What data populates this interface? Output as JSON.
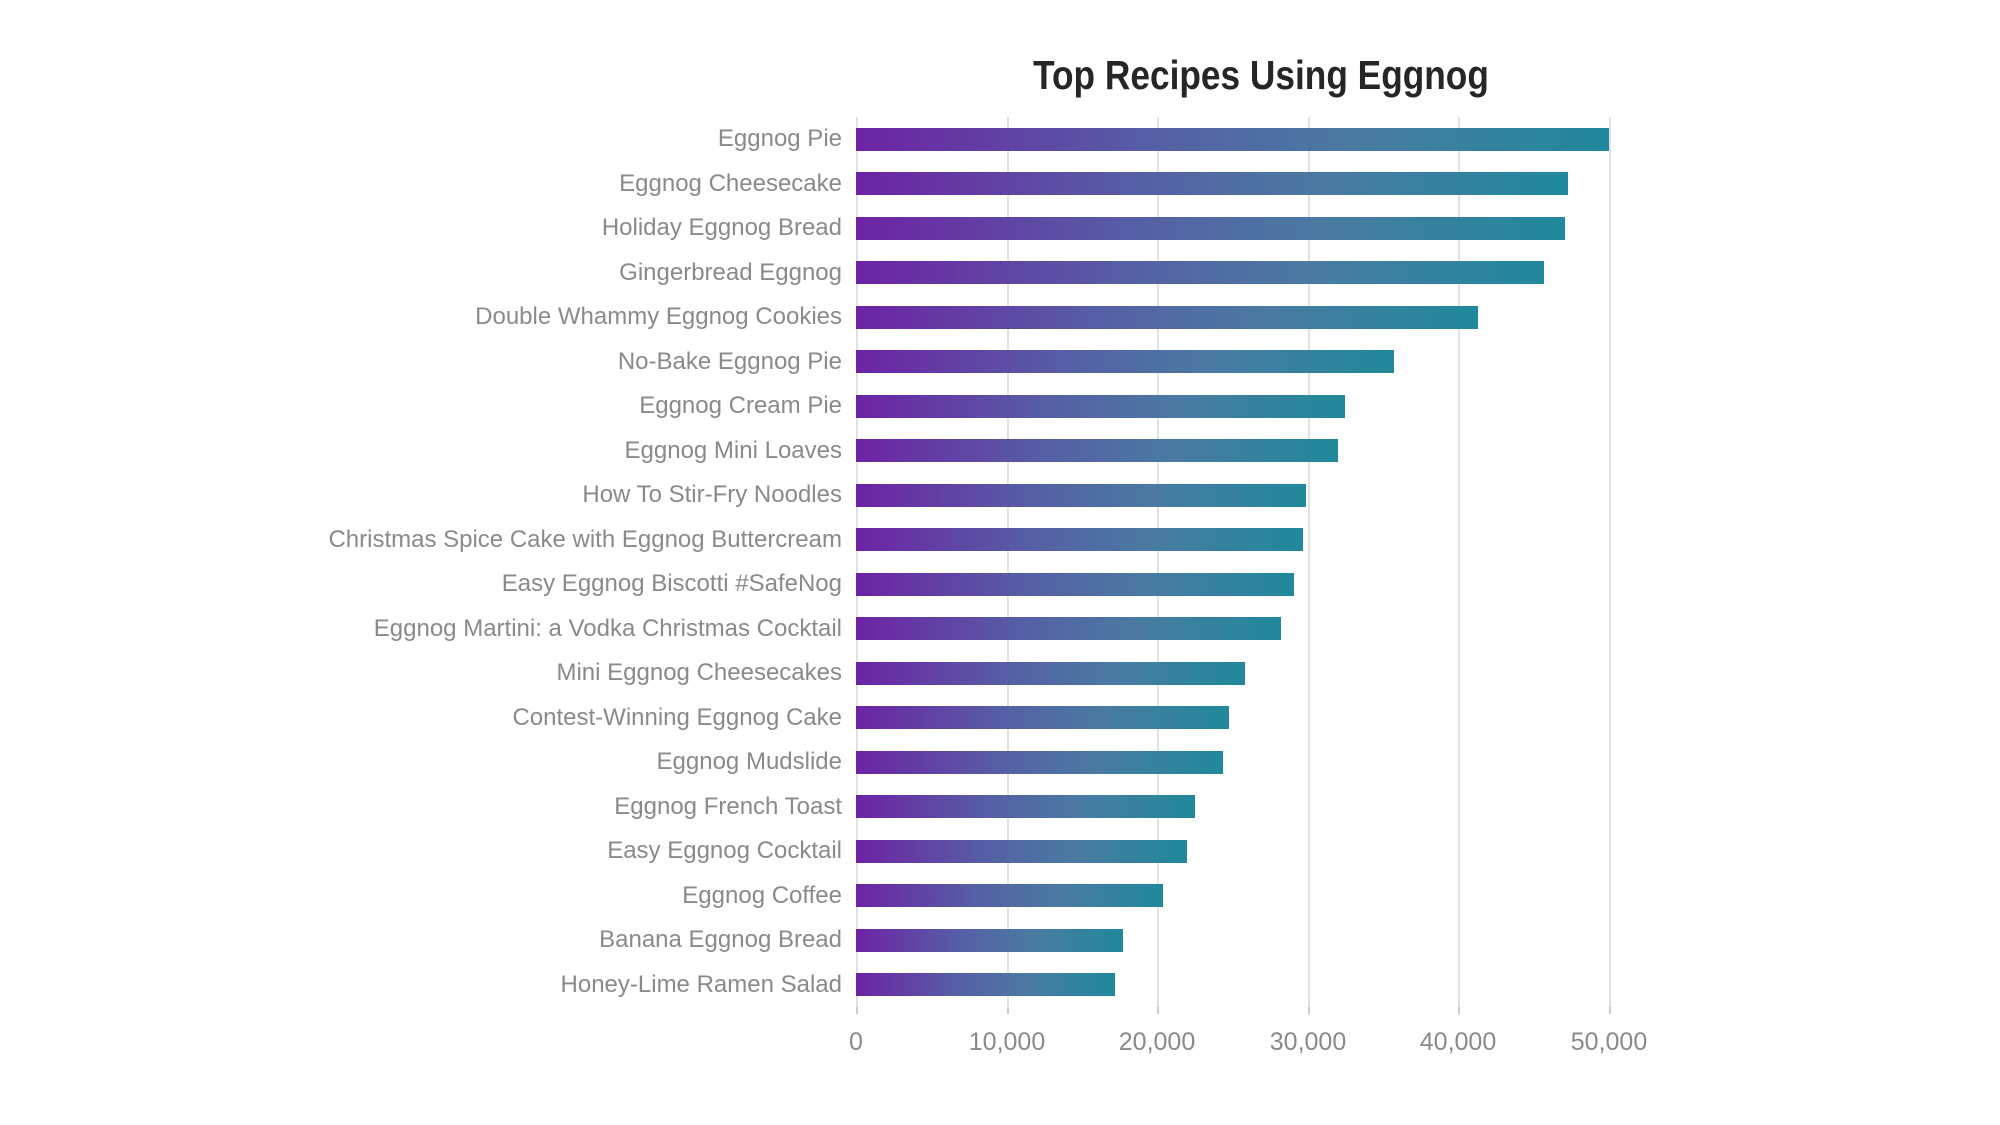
{
  "title": "Top Recipes Using Eggnog",
  "chart_data": {
    "type": "bar",
    "orientation": "horizontal",
    "title": "Top Recipes Using Eggnog",
    "xlabel": "",
    "ylabel": "",
    "grid": true,
    "legend": false,
    "xlim": [
      0,
      53500
    ],
    "xticks": [
      0,
      10000,
      20000,
      30000,
      40000,
      50000
    ],
    "xtick_labels": [
      "0",
      "10,000",
      "20,000",
      "30,000",
      "40,000",
      "50,000"
    ],
    "categories": [
      "Eggnog Pie",
      "Eggnog Cheesecake",
      "Holiday Eggnog Bread",
      "Gingerbread Eggnog",
      "Double Whammy Eggnog Cookies",
      "No-Bake Eggnog Pie",
      "Eggnog Cream Pie",
      "Eggnog Mini Loaves",
      "How To Stir-Fry Noodles",
      "Christmas Spice Cake with Eggnog Buttercream",
      "Easy Eggnog Biscotti #SafeNog",
      "Eggnog Martini: a Vodka Christmas Cocktail",
      "Mini Eggnog Cheesecakes",
      "Contest-Winning Eggnog Cake",
      "Eggnog Mudslide",
      "Eggnog French Toast",
      "Easy Eggnog Cocktail",
      "Eggnog Coffee",
      "Banana Eggnog Bread",
      "Honey-Lime Ramen Salad"
    ],
    "values": [
      50000,
      47300,
      47100,
      45700,
      41300,
      35700,
      32500,
      32000,
      29900,
      29700,
      29100,
      28200,
      25800,
      24800,
      24400,
      22500,
      22000,
      20400,
      17700,
      17200
    ],
    "colors": {
      "bar_gradient_start": "#6d23a4",
      "bar_gradient_mid": "#4a7aa2",
      "bar_gradient_end": "#20899b",
      "title_text": "#262626",
      "label_text": "#8a8a8a",
      "gridline": "#e2e2e2",
      "background": "#ffffff"
    }
  }
}
